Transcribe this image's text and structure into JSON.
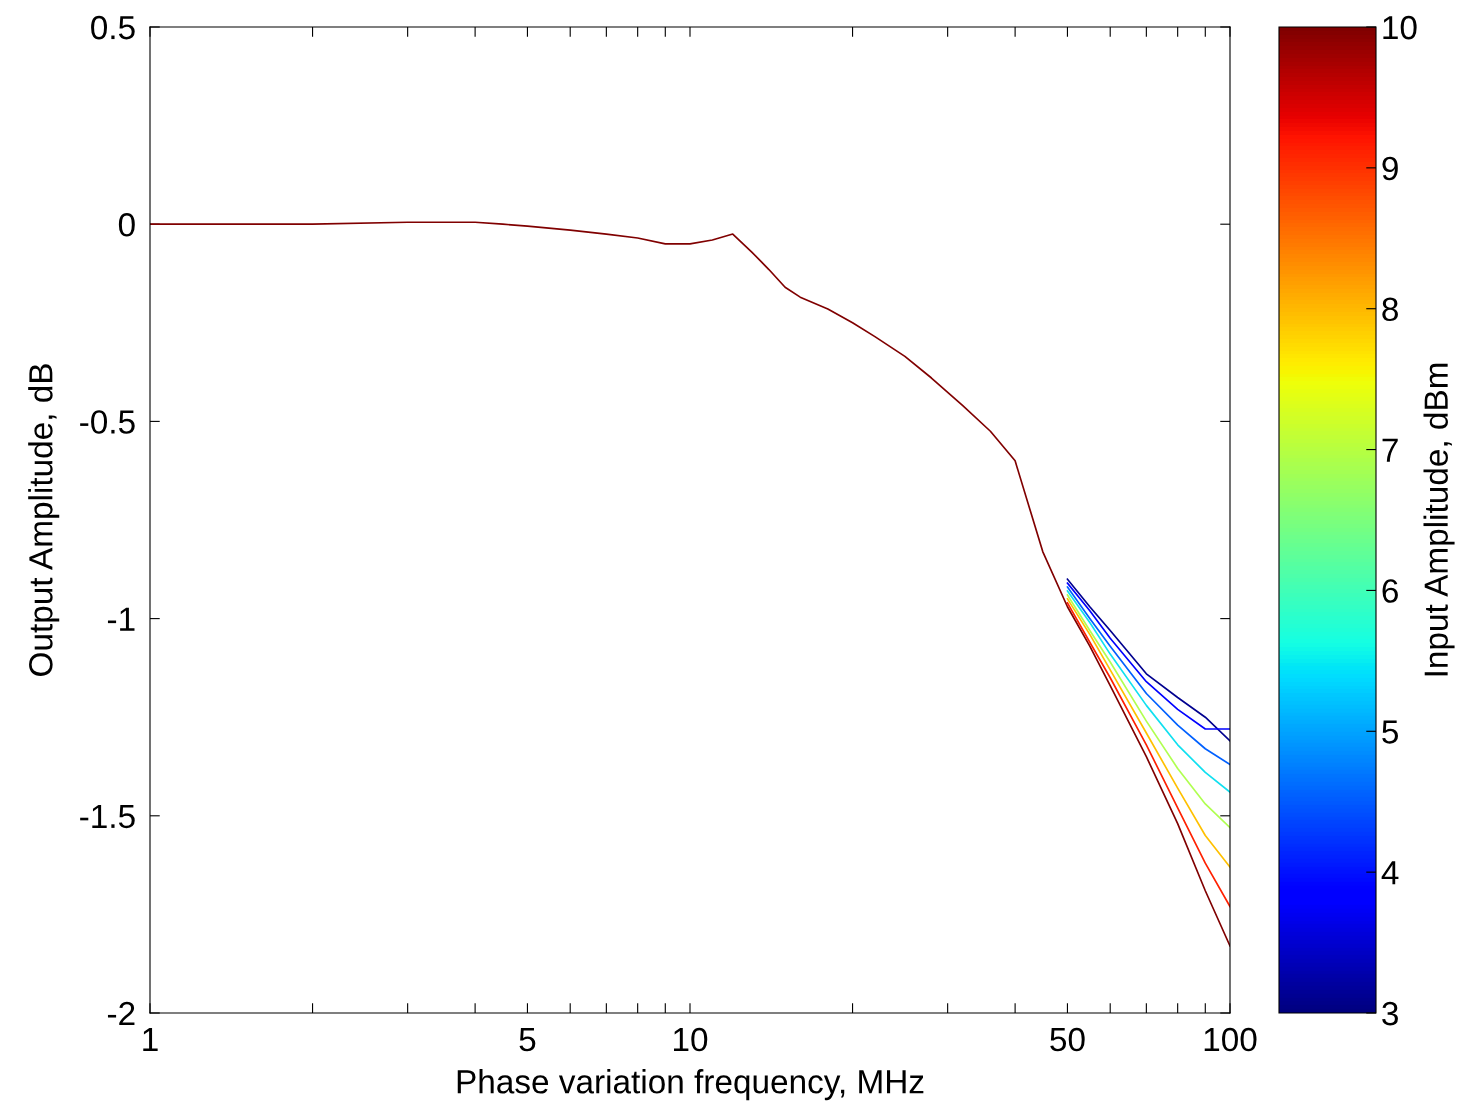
{
  "chart_data": {
    "type": "line",
    "xlabel": "Phase variation frequency, MHz",
    "ylabel": "Output Amplitude, dB",
    "clabel": "Input Amplitude, dBm",
    "log": "x",
    "grid": false,
    "xlim": [
      1,
      100
    ],
    "ylim": [
      -2,
      0.5
    ],
    "xticks": [
      1,
      {
        "value": 2,
        "label": null
      },
      {
        "value": 3,
        "label": null
      },
      {
        "value": 4,
        "label": null
      },
      5,
      {
        "value": 6,
        "label": null
      },
      {
        "value": 7,
        "label": null
      },
      {
        "value": 8,
        "label": null
      },
      {
        "value": 9,
        "label": null
      },
      10,
      {
        "value": 20,
        "label": null
      },
      {
        "value": 30,
        "label": null
      },
      {
        "value": 40,
        "label": null
      },
      50,
      {
        "value": 60,
        "label": null
      },
      {
        "value": 70,
        "label": null
      },
      {
        "value": 80,
        "label": null
      },
      {
        "value": 90,
        "label": null
      },
      100
    ],
    "yticks": [
      -2,
      -1.5,
      -1,
      -0.5,
      0,
      0.5
    ],
    "clim": [
      3,
      10
    ],
    "cticks": [
      3,
      4,
      5,
      6,
      7,
      8,
      9,
      10
    ],
    "x": [
      1,
      1.5,
      2,
      3,
      4,
      4.5,
      5,
      6,
      7,
      8,
      9,
      10,
      11,
      12,
      13,
      14,
      15,
      16,
      18,
      20,
      22,
      25,
      28,
      32,
      36,
      40,
      45,
      50,
      55,
      60,
      70,
      80,
      90,
      100
    ],
    "series": [
      {
        "color": "#00008f",
        "values": [
          null,
          null,
          null,
          null,
          null,
          null,
          null,
          null,
          null,
          null,
          null,
          null,
          null,
          null,
          null,
          null,
          null,
          null,
          null,
          null,
          null,
          null,
          null,
          null,
          null,
          null,
          null,
          -0.9,
          -0.97,
          -1.03,
          -1.14,
          -1.2,
          -1.25,
          -1.31
        ]
      },
      {
        "color": "#0000ff",
        "values": [
          null,
          null,
          null,
          null,
          null,
          null,
          null,
          null,
          null,
          null,
          null,
          null,
          null,
          null,
          null,
          null,
          null,
          null,
          null,
          null,
          null,
          null,
          null,
          null,
          null,
          null,
          null,
          -0.91,
          -0.98,
          -1.05,
          -1.16,
          -1.23,
          -1.28,
          -1.28
        ]
      },
      {
        "color": "#0060ff",
        "values": [
          null,
          null,
          null,
          null,
          null,
          null,
          null,
          null,
          null,
          null,
          null,
          null,
          null,
          null,
          null,
          null,
          null,
          null,
          null,
          null,
          null,
          null,
          null,
          null,
          null,
          null,
          null,
          -0.92,
          -1.0,
          -1.07,
          -1.19,
          -1.27,
          -1.33,
          -1.37
        ]
      },
      {
        "color": "#10e0f0",
        "values": [
          null,
          null,
          null,
          null,
          null,
          null,
          null,
          null,
          null,
          null,
          null,
          null,
          null,
          null,
          null,
          null,
          null,
          null,
          null,
          null,
          null,
          null,
          null,
          null,
          null,
          null,
          null,
          -0.93,
          -1.01,
          -1.09,
          -1.22,
          -1.32,
          -1.39,
          -1.44
        ]
      },
      {
        "color": "#b0ff50",
        "values": [
          null,
          null,
          null,
          null,
          null,
          null,
          null,
          null,
          null,
          null,
          null,
          null,
          null,
          null,
          null,
          null,
          null,
          null,
          null,
          null,
          null,
          null,
          null,
          null,
          null,
          null,
          null,
          -0.94,
          -1.03,
          -1.11,
          -1.26,
          -1.38,
          -1.47,
          -1.53
        ]
      },
      {
        "color": "#ffc000",
        "values": [
          null,
          null,
          null,
          null,
          null,
          null,
          null,
          null,
          null,
          null,
          null,
          null,
          null,
          null,
          null,
          null,
          null,
          null,
          null,
          null,
          null,
          null,
          null,
          null,
          null,
          null,
          null,
          -0.95,
          -1.04,
          -1.13,
          -1.29,
          -1.43,
          -1.55,
          -1.63
        ]
      },
      {
        "color": "#ff2000",
        "values": [
          null,
          null,
          null,
          null,
          null,
          null,
          null,
          null,
          null,
          null,
          null,
          null,
          null,
          null,
          null,
          null,
          null,
          null,
          null,
          null,
          null,
          null,
          null,
          null,
          null,
          null,
          null,
          -0.96,
          -1.06,
          -1.15,
          -1.32,
          -1.48,
          -1.62,
          -1.73
        ]
      },
      {
        "color": "#800000",
        "values": [
          0,
          0,
          0,
          0.005,
          0.005,
          0,
          -0.005,
          -0.015,
          -0.025,
          -0.035,
          -0.05,
          -0.05,
          -0.04,
          -0.025,
          -0.07,
          -0.115,
          -0.16,
          -0.185,
          -0.215,
          -0.25,
          -0.285,
          -0.335,
          -0.39,
          -0.46,
          -0.525,
          -0.6,
          -0.83,
          -0.97,
          -1.07,
          -1.17,
          -1.35,
          -1.52,
          -1.69,
          -1.83
        ]
      }
    ]
  }
}
